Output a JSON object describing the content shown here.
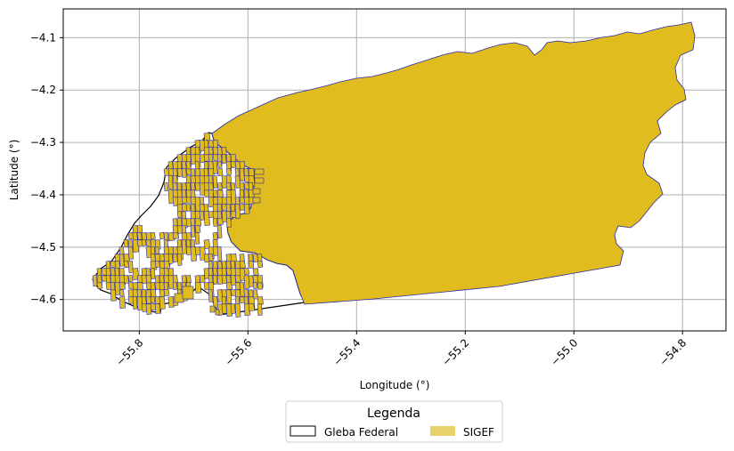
{
  "chart_data": {
    "type": "map",
    "xlabel": "Longitude (°)",
    "ylabel": "Latitude (°)",
    "xlim": [
      -55.94,
      -54.72
    ],
    "ylim": [
      -4.66,
      -4.045
    ],
    "x_ticks": [
      {
        "value": -55.8,
        "label": "−55.8"
      },
      {
        "value": -55.6,
        "label": "−55.6"
      },
      {
        "value": -55.4,
        "label": "−55.4"
      },
      {
        "value": -55.2,
        "label": "−55.2"
      },
      {
        "value": -55.0,
        "label": "−55.0"
      },
      {
        "value": -54.8,
        "label": "−54.8"
      }
    ],
    "y_ticks": [
      {
        "value": -4.1,
        "label": "−4.1"
      },
      {
        "value": -4.2,
        "label": "−4.2"
      },
      {
        "value": -4.3,
        "label": "−4.3"
      },
      {
        "value": -4.4,
        "label": "−4.4"
      },
      {
        "value": -4.5,
        "label": "−4.5"
      },
      {
        "value": -4.6,
        "label": "−4.6"
      }
    ],
    "grid": true,
    "legend": {
      "title": "Legenda",
      "placement": "bottom-center",
      "entries": [
        {
          "label": "Gleba Federal",
          "type": "outline",
          "color": "#000000"
        },
        {
          "label": "SIGEF",
          "type": "fill",
          "color": "#e8d06a"
        }
      ]
    },
    "colors": {
      "sigef_fill": "#e0bc1f",
      "sigef_edge": "#2a2aa8",
      "gleba_edge": "#000000",
      "grid": "#b0b0b0"
    }
  }
}
